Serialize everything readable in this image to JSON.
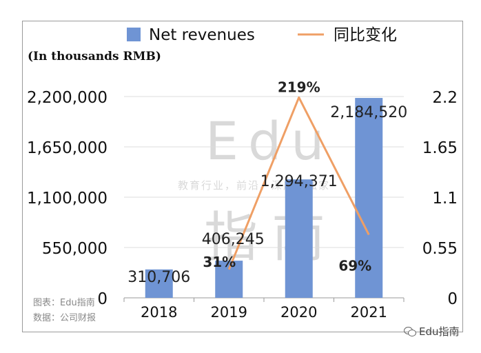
{
  "chart_data": {
    "type": "bar",
    "categories": [
      "2018",
      "2019",
      "2020",
      "2021"
    ],
    "series": [
      {
        "name": "Net revenues",
        "kind": "bar",
        "axis": "left",
        "values": [
          310706,
          406245,
          1294371,
          2184520
        ],
        "labels": [
          "310,706",
          "406,245",
          "1,294,371",
          "2,184,520"
        ]
      },
      {
        "name": "同比变化",
        "kind": "line",
        "axis": "right",
        "values": [
          null,
          0.31,
          2.19,
          0.69
        ],
        "labels": [
          "",
          "31%",
          "219%",
          "69%"
        ]
      }
    ],
    "ylabel": "(In thousands RMB)",
    "ylim": [
      0,
      2200000
    ],
    "y_ticks": [
      "0",
      "550,000",
      "1,100,000",
      "1,650,000",
      "2,200,000"
    ],
    "y2lim": [
      0,
      2.2
    ],
    "y2_ticks": [
      "0",
      "0.55",
      "1.1",
      "1.65",
      "2.2"
    ],
    "grid": true,
    "legend_position": "top",
    "colors": {
      "bar": "#6f94d4",
      "line": "#ef9f65"
    }
  },
  "source": {
    "line1": "图表：Edu指南",
    "line2": "数据：公司财报"
  },
  "watermark": {
    "brand_latin": "Edu",
    "brand_cn": "指南",
    "tagline": "教育行业，前沿、深度、独家"
  },
  "account": {
    "name": "Edu指南",
    "icon": "wechat-icon"
  }
}
